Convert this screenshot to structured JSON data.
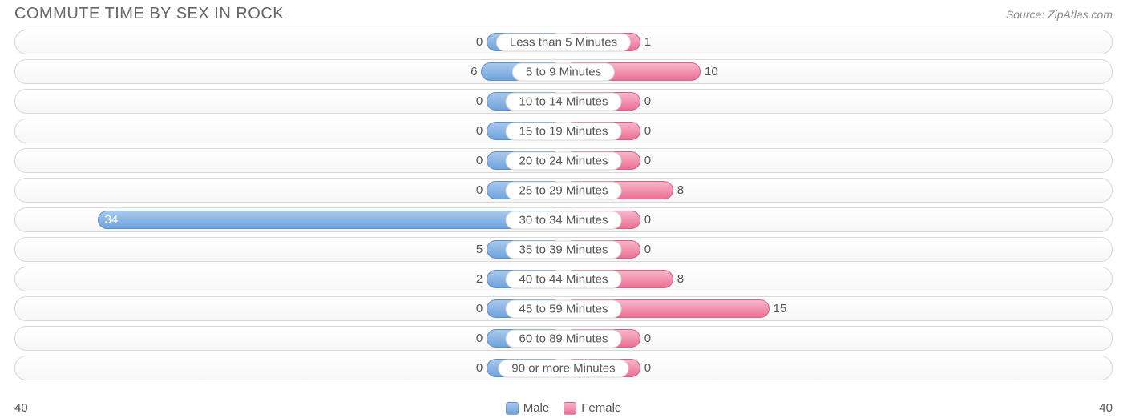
{
  "title": "COMMUTE TIME BY SEX IN ROCK",
  "source": "Source: ZipAtlas.com",
  "axis_max_left": 40,
  "axis_max_right": 40,
  "min_bar_width_pct": 14,
  "inside_label_threshold_pct": 65,
  "colors": {
    "male_fill_top": "#a9c8ec",
    "male_fill_bottom": "#6fa3de",
    "male_border": "#5a8fc8",
    "female_fill_top": "#f7b6ca",
    "female_fill_bottom": "#ed6f95",
    "female_border": "#d85f85",
    "row_border": "#d8d8d8",
    "text": "#555555",
    "title_text": "#666666",
    "background": "#ffffff"
  },
  "series": [
    {
      "key": "male",
      "label": "Male",
      "side": "left"
    },
    {
      "key": "female",
      "label": "Female",
      "side": "right"
    }
  ],
  "rows": [
    {
      "label": "Less than 5 Minutes",
      "male": 0,
      "female": 1
    },
    {
      "label": "5 to 9 Minutes",
      "male": 6,
      "female": 10
    },
    {
      "label": "10 to 14 Minutes",
      "male": 0,
      "female": 0
    },
    {
      "label": "15 to 19 Minutes",
      "male": 0,
      "female": 0
    },
    {
      "label": "20 to 24 Minutes",
      "male": 0,
      "female": 0
    },
    {
      "label": "25 to 29 Minutes",
      "male": 0,
      "female": 8
    },
    {
      "label": "30 to 34 Minutes",
      "male": 34,
      "female": 0
    },
    {
      "label": "35 to 39 Minutes",
      "male": 5,
      "female": 0
    },
    {
      "label": "40 to 44 Minutes",
      "male": 2,
      "female": 8
    },
    {
      "label": "45 to 59 Minutes",
      "male": 0,
      "female": 15
    },
    {
      "label": "60 to 89 Minutes",
      "male": 0,
      "female": 0
    },
    {
      "label": "90 or more Minutes",
      "male": 0,
      "female": 0
    }
  ]
}
